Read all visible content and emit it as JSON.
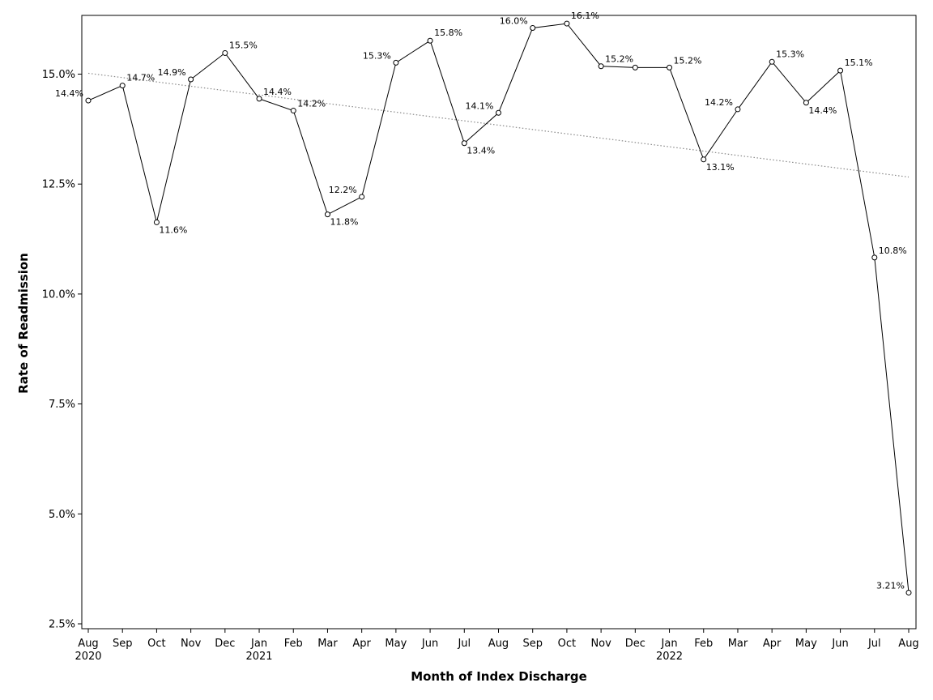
{
  "chart_data": {
    "type": "line",
    "xlabel": "Month of Index Discharge",
    "ylabel": "Rate of Readmission",
    "ylim": [
      2.3,
      16.5
    ],
    "yticks": [
      2.5,
      5.0,
      7.5,
      10.0,
      12.5,
      15.0
    ],
    "ytick_labels": [
      "2.5%",
      "5.0%",
      "7.5%",
      "10.0%",
      "12.5%",
      "15.0%"
    ],
    "year_labels": [
      {
        "index": 0,
        "label": "2020"
      },
      {
        "index": 5,
        "label": "2021"
      },
      {
        "index": 17,
        "label": "2022"
      }
    ],
    "categories": [
      "Aug",
      "Sep",
      "Oct",
      "Nov",
      "Dec",
      "Jan",
      "Feb",
      "Mar",
      "Apr",
      "May",
      "Jun",
      "Jul",
      "Aug",
      "Sep",
      "Oct",
      "Nov",
      "Dec",
      "Jan",
      "Feb",
      "Mar",
      "Apr",
      "May",
      "Jun",
      "Jul",
      "Aug"
    ],
    "series": [
      {
        "values": [
          14.4,
          14.74,
          11.63,
          14.88,
          15.48,
          14.44,
          14.17,
          11.81,
          12.21,
          15.26,
          15.76,
          13.43,
          14.12,
          16.05,
          16.15,
          15.18,
          15.15,
          15.15,
          13.06,
          14.2,
          15.28,
          14.35,
          15.08,
          10.83,
          3.21
        ],
        "labels": [
          "14.4%",
          "14.7%",
          "11.6%",
          "14.9%",
          "15.5%",
          "14.4%",
          "14.2%",
          "11.8%",
          "12.2%",
          "15.3%",
          "15.8%",
          "13.4%",
          "14.1%",
          "16.0%",
          "16.1%",
          "15.2%",
          "",
          "15.2%",
          "13.1%",
          "14.2%",
          "15.3%",
          "14.4%",
          "15.1%",
          "10.8%",
          "3.21%"
        ],
        "color": "#000000",
        "marker": "circle"
      }
    ],
    "trendline": {
      "start": 15.02,
      "end": 12.66,
      "color": "#888888",
      "style": "dotted"
    },
    "grid": false
  }
}
